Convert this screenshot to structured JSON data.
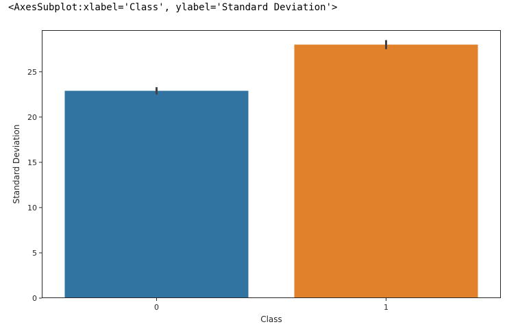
{
  "output": {
    "repr_text": "<AxesSubplot:xlabel='Class', ylabel='Standard Deviation'>"
  },
  "chart_data": {
    "type": "bar",
    "categories": [
      "0",
      "1"
    ],
    "values": [
      22.9,
      28.0
    ],
    "error_bars": [
      {
        "low": 22.5,
        "high": 23.3
      },
      {
        "low": 27.5,
        "high": 28.5
      }
    ],
    "title": "",
    "xlabel": "Class",
    "ylabel": "Standard Deviation",
    "ylim": [
      0,
      29.6
    ],
    "yticks": [
      0,
      5,
      10,
      15,
      20,
      25
    ],
    "grid": false,
    "colors": [
      "#3274a1",
      "#e1812c"
    ],
    "error_bar_color": "#424242",
    "frame_color": "#262626"
  }
}
